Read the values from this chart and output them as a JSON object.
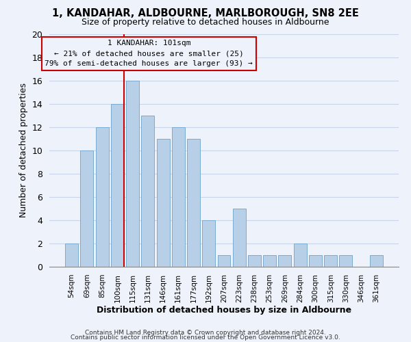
{
  "title": "1, KANDAHAR, ALDBOURNE, MARLBOROUGH, SN8 2EE",
  "subtitle": "Size of property relative to detached houses in Aldbourne",
  "xlabel": "Distribution of detached houses by size in Aldbourne",
  "ylabel": "Number of detached properties",
  "bar_color": "#b8cfe8",
  "bar_edgecolor": "#7aaad0",
  "bin_labels": [
    "54sqm",
    "69sqm",
    "85sqm",
    "100sqm",
    "115sqm",
    "131sqm",
    "146sqm",
    "161sqm",
    "177sqm",
    "192sqm",
    "207sqm",
    "223sqm",
    "238sqm",
    "253sqm",
    "269sqm",
    "284sqm",
    "300sqm",
    "315sqm",
    "330sqm",
    "346sqm",
    "361sqm"
  ],
  "counts": [
    2,
    10,
    12,
    14,
    16,
    13,
    11,
    12,
    11,
    4,
    1,
    5,
    1,
    1,
    1,
    2,
    1,
    1,
    1,
    0,
    1
  ],
  "marker_bin_index": 3,
  "annotation_line1": "1 KANDAHAR: 101sqm",
  "annotation_line2": "← 21% of detached houses are smaller (25)",
  "annotation_line3": "79% of semi-detached houses are larger (93) →",
  "marker_color": "#cc0000",
  "annotation_box_edgecolor": "#cc0000",
  "ylim": [
    0,
    20
  ],
  "yticks": [
    0,
    2,
    4,
    6,
    8,
    10,
    12,
    14,
    16,
    18,
    20
  ],
  "grid_color": "#c8d4e8",
  "background_color": "#eef2fa",
  "footer1": "Contains HM Land Registry data © Crown copyright and database right 2024.",
  "footer2": "Contains public sector information licensed under the Open Government Licence v3.0."
}
